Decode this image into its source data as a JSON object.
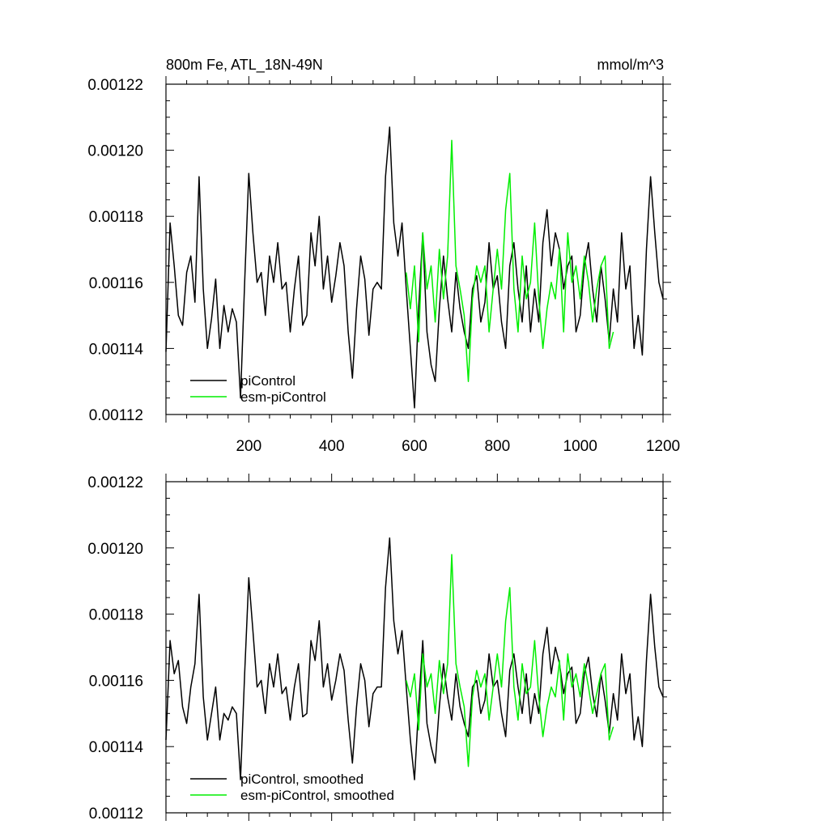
{
  "chart_data": [
    {
      "type": "line",
      "title": "800m Fe, ATL_18N-49N",
      "units": "mmol/m^3",
      "xlim": [
        0,
        1200
      ],
      "ylim": [
        0.00112,
        0.00122
      ],
      "xticks": [
        "200",
        "400",
        "600",
        "800",
        "1000",
        "1200"
      ],
      "yticks": [
        "0.00112",
        "0.00114",
        "0.00116",
        "0.00118",
        "0.00120",
        "0.00122"
      ],
      "legend_position": "bottom-left",
      "series": [
        {
          "name": "piControl",
          "color": "#000000",
          "x": [
            0,
            10,
            20,
            30,
            40,
            50,
            60,
            70,
            80,
            90,
            100,
            110,
            120,
            130,
            140,
            150,
            160,
            170,
            180,
            190,
            200,
            210,
            220,
            230,
            240,
            250,
            260,
            270,
            280,
            290,
            300,
            310,
            320,
            330,
            340,
            350,
            360,
            370,
            380,
            390,
            400,
            410,
            420,
            430,
            440,
            450,
            460,
            470,
            480,
            490,
            500,
            510,
            520,
            530,
            540,
            550,
            560,
            570,
            580,
            590,
            600,
            610,
            620,
            630,
            640,
            650,
            660,
            670,
            680,
            690,
            700,
            710,
            720,
            730,
            740,
            750,
            760,
            770,
            780,
            790,
            800,
            810,
            820,
            830,
            840,
            850,
            860,
            870,
            880,
            890,
            900,
            910,
            920,
            930,
            940,
            950,
            960,
            970,
            980,
            990,
            1000,
            1010,
            1020,
            1030,
            1040,
            1050,
            1060,
            1070,
            1080,
            1090,
            1100,
            1110,
            1120,
            1130,
            1140,
            1150,
            1160,
            1170,
            1180,
            1190,
            1200
          ],
          "y": [
            0.001139,
            0.001178,
            0.001165,
            0.00115,
            0.001147,
            0.001163,
            0.001168,
            0.001154,
            0.001192,
            0.001158,
            0.00114,
            0.001149,
            0.001161,
            0.00114,
            0.001153,
            0.001145,
            0.001152,
            0.001148,
            0.001125,
            0.00116,
            0.001193,
            0.001175,
            0.00116,
            0.001163,
            0.00115,
            0.001168,
            0.00116,
            0.001172,
            0.001158,
            0.00116,
            0.001145,
            0.001158,
            0.001168,
            0.001147,
            0.00115,
            0.001175,
            0.001165,
            0.00118,
            0.001158,
            0.001168,
            0.001154,
            0.001162,
            0.001172,
            0.001165,
            0.001145,
            0.001131,
            0.001152,
            0.001168,
            0.001161,
            0.001144,
            0.001158,
            0.00116,
            0.001158,
            0.001192,
            0.001207,
            0.001178,
            0.001168,
            0.001178,
            0.001158,
            0.00114,
            0.001122,
            0.001152,
            0.001175,
            0.001145,
            0.001135,
            0.00113,
            0.001152,
            0.001168,
            0.001155,
            0.001145,
            0.001163,
            0.001152,
            0.001145,
            0.00114,
            0.001158,
            0.001162,
            0.001148,
            0.001154,
            0.001172,
            0.001158,
            0.001162,
            0.001148,
            0.00114,
            0.001165,
            0.001172,
            0.001158,
            0.001148,
            0.001165,
            0.001145,
            0.001158,
            0.001148,
            0.001172,
            0.001182,
            0.001165,
            0.001175,
            0.00117,
            0.001158,
            0.001165,
            0.001168,
            0.001145,
            0.00115,
            0.001165,
            0.001172,
            0.001158,
            0.001148,
            0.001165,
            0.001155,
            0.001142,
            0.001158,
            0.001148,
            0.001175,
            0.001158,
            0.001165,
            0.00114,
            0.00115,
            0.001138,
            0.00117,
            0.001192,
            0.001175,
            0.00116,
            0.001155
          ]
        },
        {
          "name": "esm-piControl",
          "color": "#00ee00",
          "x": [
            580,
            590,
            600,
            610,
            620,
            630,
            640,
            650,
            660,
            670,
            680,
            690,
            700,
            710,
            720,
            730,
            740,
            750,
            760,
            770,
            780,
            790,
            800,
            810,
            820,
            830,
            840,
            850,
            860,
            870,
            880,
            890,
            900,
            910,
            920,
            930,
            940,
            950,
            960,
            970,
            980,
            990,
            1000,
            1010,
            1020,
            1030,
            1040,
            1050,
            1060,
            1070,
            1080
          ],
          "y": [
            0.001163,
            0.001152,
            0.001165,
            0.001142,
            0.001175,
            0.001158,
            0.001165,
            0.001148,
            0.00117,
            0.001155,
            0.001168,
            0.001203,
            0.001165,
            0.001158,
            0.00115,
            0.00113,
            0.001155,
            0.001165,
            0.00116,
            0.001165,
            0.001145,
            0.001158,
            0.00117,
            0.001158,
            0.001182,
            0.001193,
            0.001158,
            0.001145,
            0.001168,
            0.001155,
            0.00116,
            0.001178,
            0.001155,
            0.00114,
            0.001152,
            0.00116,
            0.001155,
            0.00117,
            0.001145,
            0.001175,
            0.00116,
            0.001165,
            0.001155,
            0.001168,
            0.00116,
            0.001148,
            0.001158,
            0.001165,
            0.001168,
            0.00114,
            0.001145
          ]
        }
      ]
    },
    {
      "type": "line",
      "xlim": [
        0,
        1200
      ],
      "ylim": [
        0.00112,
        0.00122
      ],
      "yticks": [
        "0.00112",
        "0.00114",
        "0.00116",
        "0.00118",
        "0.00120",
        "0.00122"
      ],
      "legend_position": "bottom-left",
      "series": [
        {
          "name": "piControl, smoothed",
          "color": "#000000",
          "x": [
            0,
            10,
            20,
            30,
            40,
            50,
            60,
            70,
            80,
            90,
            100,
            110,
            120,
            130,
            140,
            150,
            160,
            170,
            180,
            190,
            200,
            210,
            220,
            230,
            240,
            250,
            260,
            270,
            280,
            290,
            300,
            310,
            320,
            330,
            340,
            350,
            360,
            370,
            380,
            390,
            400,
            410,
            420,
            430,
            440,
            450,
            460,
            470,
            480,
            490,
            500,
            510,
            520,
            530,
            540,
            550,
            560,
            570,
            580,
            590,
            600,
            610,
            620,
            630,
            640,
            650,
            660,
            670,
            680,
            690,
            700,
            710,
            720,
            730,
            740,
            750,
            760,
            770,
            780,
            790,
            800,
            810,
            820,
            830,
            840,
            850,
            860,
            870,
            880,
            890,
            900,
            910,
            920,
            930,
            940,
            950,
            960,
            970,
            980,
            990,
            1000,
            1010,
            1020,
            1030,
            1040,
            1050,
            1060,
            1070,
            1080,
            1090,
            1100,
            1110,
            1120,
            1130,
            1140,
            1150,
            1160,
            1170,
            1180,
            1190,
            1200
          ],
          "y": [
            0.001142,
            0.001172,
            0.001162,
            0.001166,
            0.001152,
            0.001147,
            0.001158,
            0.001165,
            0.001186,
            0.001155,
            0.001142,
            0.00115,
            0.001158,
            0.001142,
            0.00115,
            0.001148,
            0.001152,
            0.00115,
            0.00113,
            0.001162,
            0.001191,
            0.001175,
            0.001158,
            0.00116,
            0.00115,
            0.001165,
            0.001158,
            0.001168,
            0.001156,
            0.001158,
            0.001148,
            0.001158,
            0.001165,
            0.001149,
            0.00115,
            0.001172,
            0.001166,
            0.001178,
            0.001158,
            0.001165,
            0.001154,
            0.00116,
            0.001168,
            0.001163,
            0.001148,
            0.001135,
            0.001152,
            0.001165,
            0.00116,
            0.001146,
            0.001156,
            0.001158,
            0.001158,
            0.001188,
            0.001203,
            0.001178,
            0.001168,
            0.001175,
            0.001158,
            0.001142,
            0.00113,
            0.001152,
            0.001172,
            0.001147,
            0.00114,
            0.001135,
            0.001152,
            0.001165,
            0.001155,
            0.001148,
            0.001162,
            0.001152,
            0.001147,
            0.001143,
            0.001158,
            0.00116,
            0.00115,
            0.001154,
            0.001168,
            0.001158,
            0.00116,
            0.00115,
            0.001143,
            0.001163,
            0.001168,
            0.001158,
            0.00115,
            0.001162,
            0.001147,
            0.001156,
            0.00115,
            0.001168,
            0.001176,
            0.001162,
            0.00117,
            0.001165,
            0.001156,
            0.001162,
            0.001164,
            0.001147,
            0.00115,
            0.001162,
            0.001167,
            0.001156,
            0.001149,
            0.001162,
            0.001154,
            0.001144,
            0.001156,
            0.001148,
            0.001168,
            0.001156,
            0.001162,
            0.001142,
            0.001149,
            0.00114,
            0.001166,
            0.001186,
            0.00117,
            0.001158,
            0.001155
          ]
        },
        {
          "name": "esm-piControl, smoothed",
          "color": "#00ee00",
          "x": [
            580,
            590,
            600,
            610,
            620,
            630,
            640,
            650,
            660,
            670,
            680,
            690,
            700,
            710,
            720,
            730,
            740,
            750,
            760,
            770,
            780,
            790,
            800,
            810,
            820,
            830,
            840,
            850,
            860,
            870,
            880,
            890,
            900,
            910,
            920,
            930,
            940,
            950,
            960,
            970,
            980,
            990,
            1000,
            1010,
            1020,
            1030,
            1040,
            1050,
            1060,
            1070,
            1080
          ],
          "y": [
            0.00116,
            0.001155,
            0.001162,
            0.001145,
            0.001168,
            0.001158,
            0.001162,
            0.00115,
            0.001166,
            0.001156,
            0.001165,
            0.001198,
            0.001165,
            0.001158,
            0.001152,
            0.001134,
            0.001155,
            0.001163,
            0.001158,
            0.001162,
            0.001148,
            0.001158,
            0.001168,
            0.001158,
            0.001178,
            0.001188,
            0.001158,
            0.001148,
            0.001165,
            0.001156,
            0.001158,
            0.001172,
            0.001155,
            0.001143,
            0.001152,
            0.001158,
            0.001155,
            0.001166,
            0.001148,
            0.001168,
            0.001158,
            0.001162,
            0.001155,
            0.001165,
            0.001158,
            0.00115,
            0.001156,
            0.001162,
            0.001165,
            0.001142,
            0.001146
          ]
        }
      ]
    }
  ]
}
